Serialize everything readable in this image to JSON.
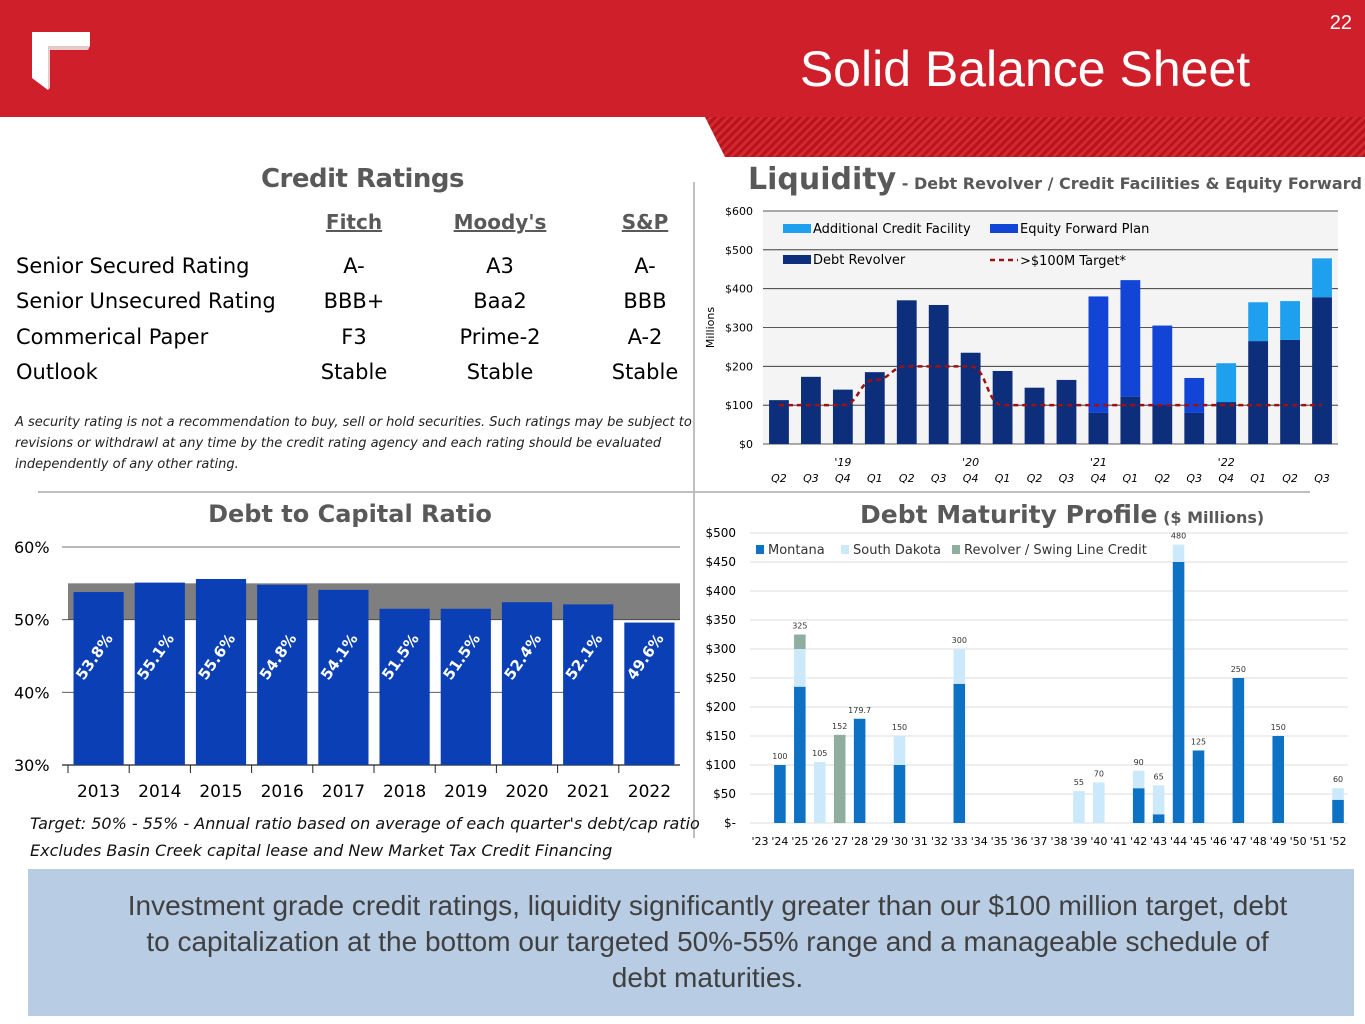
{
  "page": {
    "number": "22",
    "title": "Solid Balance Sheet",
    "summary": "Investment grade credit ratings, liquidity significantly greater than our $100 million target, debt to capitalization at the bottom our targeted 50%-55% range and a manageable schedule of debt maturities.",
    "colors": {
      "header_red": "#cf1f2a",
      "bar_blue": "#0a3fb5",
      "summary_bg": "#b8cce4"
    }
  },
  "credit_ratings": {
    "title": "Credit Ratings",
    "agencies": [
      "Fitch",
      "Moody's",
      "S&P"
    ],
    "rows": [
      {
        "label": "Senior Secured Rating",
        "values": [
          "A-",
          "A3",
          "A-"
        ]
      },
      {
        "label": "Senior Unsecured Rating",
        "values": [
          "BBB+",
          "Baa2",
          "BBB"
        ]
      },
      {
        "label": "Commerical Paper",
        "values": [
          "F3",
          "Prime-2",
          "A-2"
        ]
      },
      {
        "label": "Outlook",
        "values": [
          "Stable",
          "Stable",
          "Stable"
        ]
      }
    ],
    "disclaimer": "A security rating is not a recommendation to buy, sell or hold securities.  Such ratings may be subject to revisions or withdrawl at any time by the credit rating agency and each rating should be evaluated independently of any other rating."
  },
  "chart_data": [
    {
      "id": "liquidity",
      "type": "bar",
      "title": "Liquidity",
      "subtitle": "- Debt Revolver / Credit Facilities & Equity Forward Plan",
      "ylabel": "Millions",
      "ylim": [
        0,
        600
      ],
      "yticks": [
        0,
        100,
        200,
        300,
        400,
        500,
        600
      ],
      "ytick_labels": [
        "$0",
        "$100",
        "$200",
        "$300",
        "$400",
        "$500",
        "$600"
      ],
      "categories": [
        "Q2",
        "Q3",
        "Q4",
        "Q1",
        "Q2",
        "Q3",
        "Q4",
        "Q1",
        "Q2",
        "Q3",
        "Q4",
        "Q1",
        "Q2",
        "Q3",
        "Q4",
        "Q1",
        "Q2",
        "Q3"
      ],
      "year_labels": [
        {
          "index": 2,
          "label": "'19"
        },
        {
          "index": 6,
          "label": "'20"
        },
        {
          "index": 10,
          "label": "'21"
        },
        {
          "index": 14,
          "label": "'22"
        }
      ],
      "series": [
        {
          "name": "Debt Revolver",
          "color": "#0d2e7a",
          "values": [
            113,
            173,
            140,
            185,
            370,
            358,
            235,
            188,
            145,
            165,
            80,
            122,
            100,
            80,
            108,
            265,
            268,
            378
          ]
        },
        {
          "name": "Equity Forward Plan",
          "color": "#1245d6",
          "values": [
            0,
            0,
            0,
            0,
            0,
            0,
            0,
            0,
            0,
            0,
            300,
            300,
            205,
            90,
            0,
            0,
            0,
            0
          ]
        },
        {
          "name": "Additional Credit Facility",
          "color": "#1ea0ef",
          "values": [
            0,
            0,
            0,
            0,
            0,
            0,
            0,
            0,
            0,
            0,
            0,
            0,
            0,
            0,
            100,
            100,
            100,
            100
          ]
        }
      ],
      "target_line": {
        "name": ">$100M Target*",
        "color": "#a01010",
        "values": [
          100,
          100,
          100,
          165,
          200,
          200,
          200,
          100,
          100,
          100,
          100,
          100,
          100,
          100,
          100,
          100,
          100,
          100
        ]
      },
      "legend": {
        "placement": "top-left"
      },
      "grid": true
    },
    {
      "id": "debt-to-capital",
      "type": "bar",
      "title": "Debt to Capital Ratio",
      "categories": [
        "2013",
        "2014",
        "2015",
        "2016",
        "2017",
        "2018",
        "2019",
        "2020",
        "2021",
        "2022"
      ],
      "values": [
        53.8,
        55.1,
        55.6,
        54.8,
        54.1,
        51.5,
        51.5,
        52.4,
        52.1,
        49.6
      ],
      "value_labels": [
        "53.8%",
        "55.1%",
        "55.6%",
        "54.8%",
        "54.1%",
        "51.5%",
        "51.5%",
        "52.4%",
        "52.1%",
        "49.6%"
      ],
      "ylim": [
        30,
        60
      ],
      "yticks": [
        30,
        40,
        50,
        60
      ],
      "ytick_labels": [
        "30%",
        "40%",
        "50%",
        "60%"
      ],
      "target_band": [
        50,
        55
      ],
      "notes": [
        "Target:  50% - 55% - Annual ratio based on average of each quarter's debt/cap ratio",
        "Excludes Basin Creek capital lease and New Market Tax Credit Financing"
      ]
    },
    {
      "id": "debt-maturity",
      "type": "bar",
      "title": "Debt Maturity Profile",
      "title_suffix": "($ Millions)",
      "ylim": [
        0,
        500
      ],
      "yticks": [
        0,
        50,
        100,
        150,
        200,
        250,
        300,
        350,
        400,
        450,
        500
      ],
      "ytick_labels": [
        "$-",
        "$50",
        "$100",
        "$150",
        "$200",
        "$250",
        "$300",
        "$350",
        "$400",
        "$450",
        "$500"
      ],
      "categories": [
        "'23",
        "'24",
        "'25",
        "'26",
        "'27",
        "'28",
        "'29",
        "'30",
        "'31",
        "'32",
        "'33",
        "'34",
        "'35",
        "'36",
        "'37",
        "'38",
        "'39",
        "'40",
        "'41",
        "'42",
        "'43",
        "'44",
        "'45",
        "'46",
        "'47",
        "'48",
        "'49",
        "'50",
        "'51",
        "'52"
      ],
      "series": [
        {
          "name": "Montana",
          "color": "#0e72c4",
          "values": [
            0,
            100,
            235,
            0,
            0,
            179.7,
            0,
            100,
            0,
            0,
            240,
            0,
            0,
            0,
            0,
            0,
            0,
            0,
            0,
            60,
            15,
            450,
            125,
            0,
            250,
            0,
            150,
            0,
            0,
            40
          ]
        },
        {
          "name": "South Dakota",
          "color": "#cce9fb",
          "values": [
            0,
            0,
            65,
            105,
            0,
            0,
            0,
            50,
            0,
            0,
            60,
            0,
            0,
            0,
            0,
            0,
            55,
            70,
            0,
            30,
            50,
            30,
            0,
            0,
            0,
            0,
            0,
            0,
            0,
            20
          ]
        },
        {
          "name": "Revolver / Swing Line Credit",
          "color": "#8fae9f",
          "values": [
            0,
            0,
            25,
            0,
            152,
            0,
            0,
            0,
            0,
            0,
            0,
            0,
            0,
            0,
            0,
            0,
            0,
            0,
            0,
            0,
            0,
            0,
            0,
            0,
            0,
            0,
            0,
            0,
            0,
            0
          ]
        }
      ],
      "totals": [
        null,
        "100",
        "325",
        "105",
        "152",
        "179.7",
        null,
        "150",
        null,
        null,
        "300",
        null,
        null,
        null,
        null,
        null,
        "55",
        "70",
        null,
        "90",
        "65",
        "480",
        "125",
        null,
        "250",
        null,
        "150",
        null,
        null,
        "60"
      ],
      "legend": {
        "placement": "top-left"
      },
      "grid": true
    }
  ]
}
